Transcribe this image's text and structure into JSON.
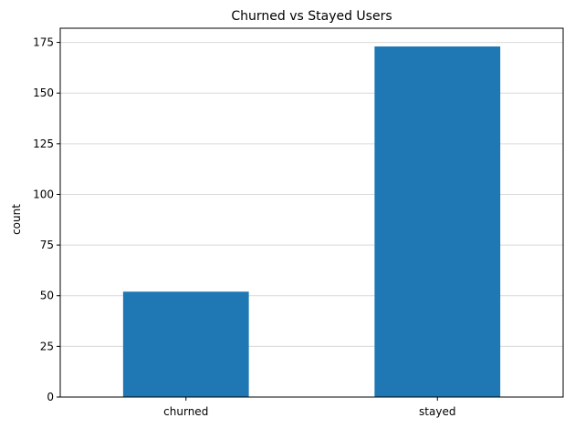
{
  "chart_data": {
    "type": "bar",
    "title": "Churned vs Stayed Users",
    "xlabel": "",
    "ylabel": "count",
    "categories": [
      "churned",
      "stayed"
    ],
    "values": [
      52,
      173
    ],
    "ylim": [
      0,
      182
    ],
    "yticks": [
      0,
      25,
      50,
      75,
      100,
      125,
      150,
      175
    ],
    "grid": "horizontal",
    "bar_color": "#1f77b4",
    "grid_color": "#d9d9d9"
  }
}
